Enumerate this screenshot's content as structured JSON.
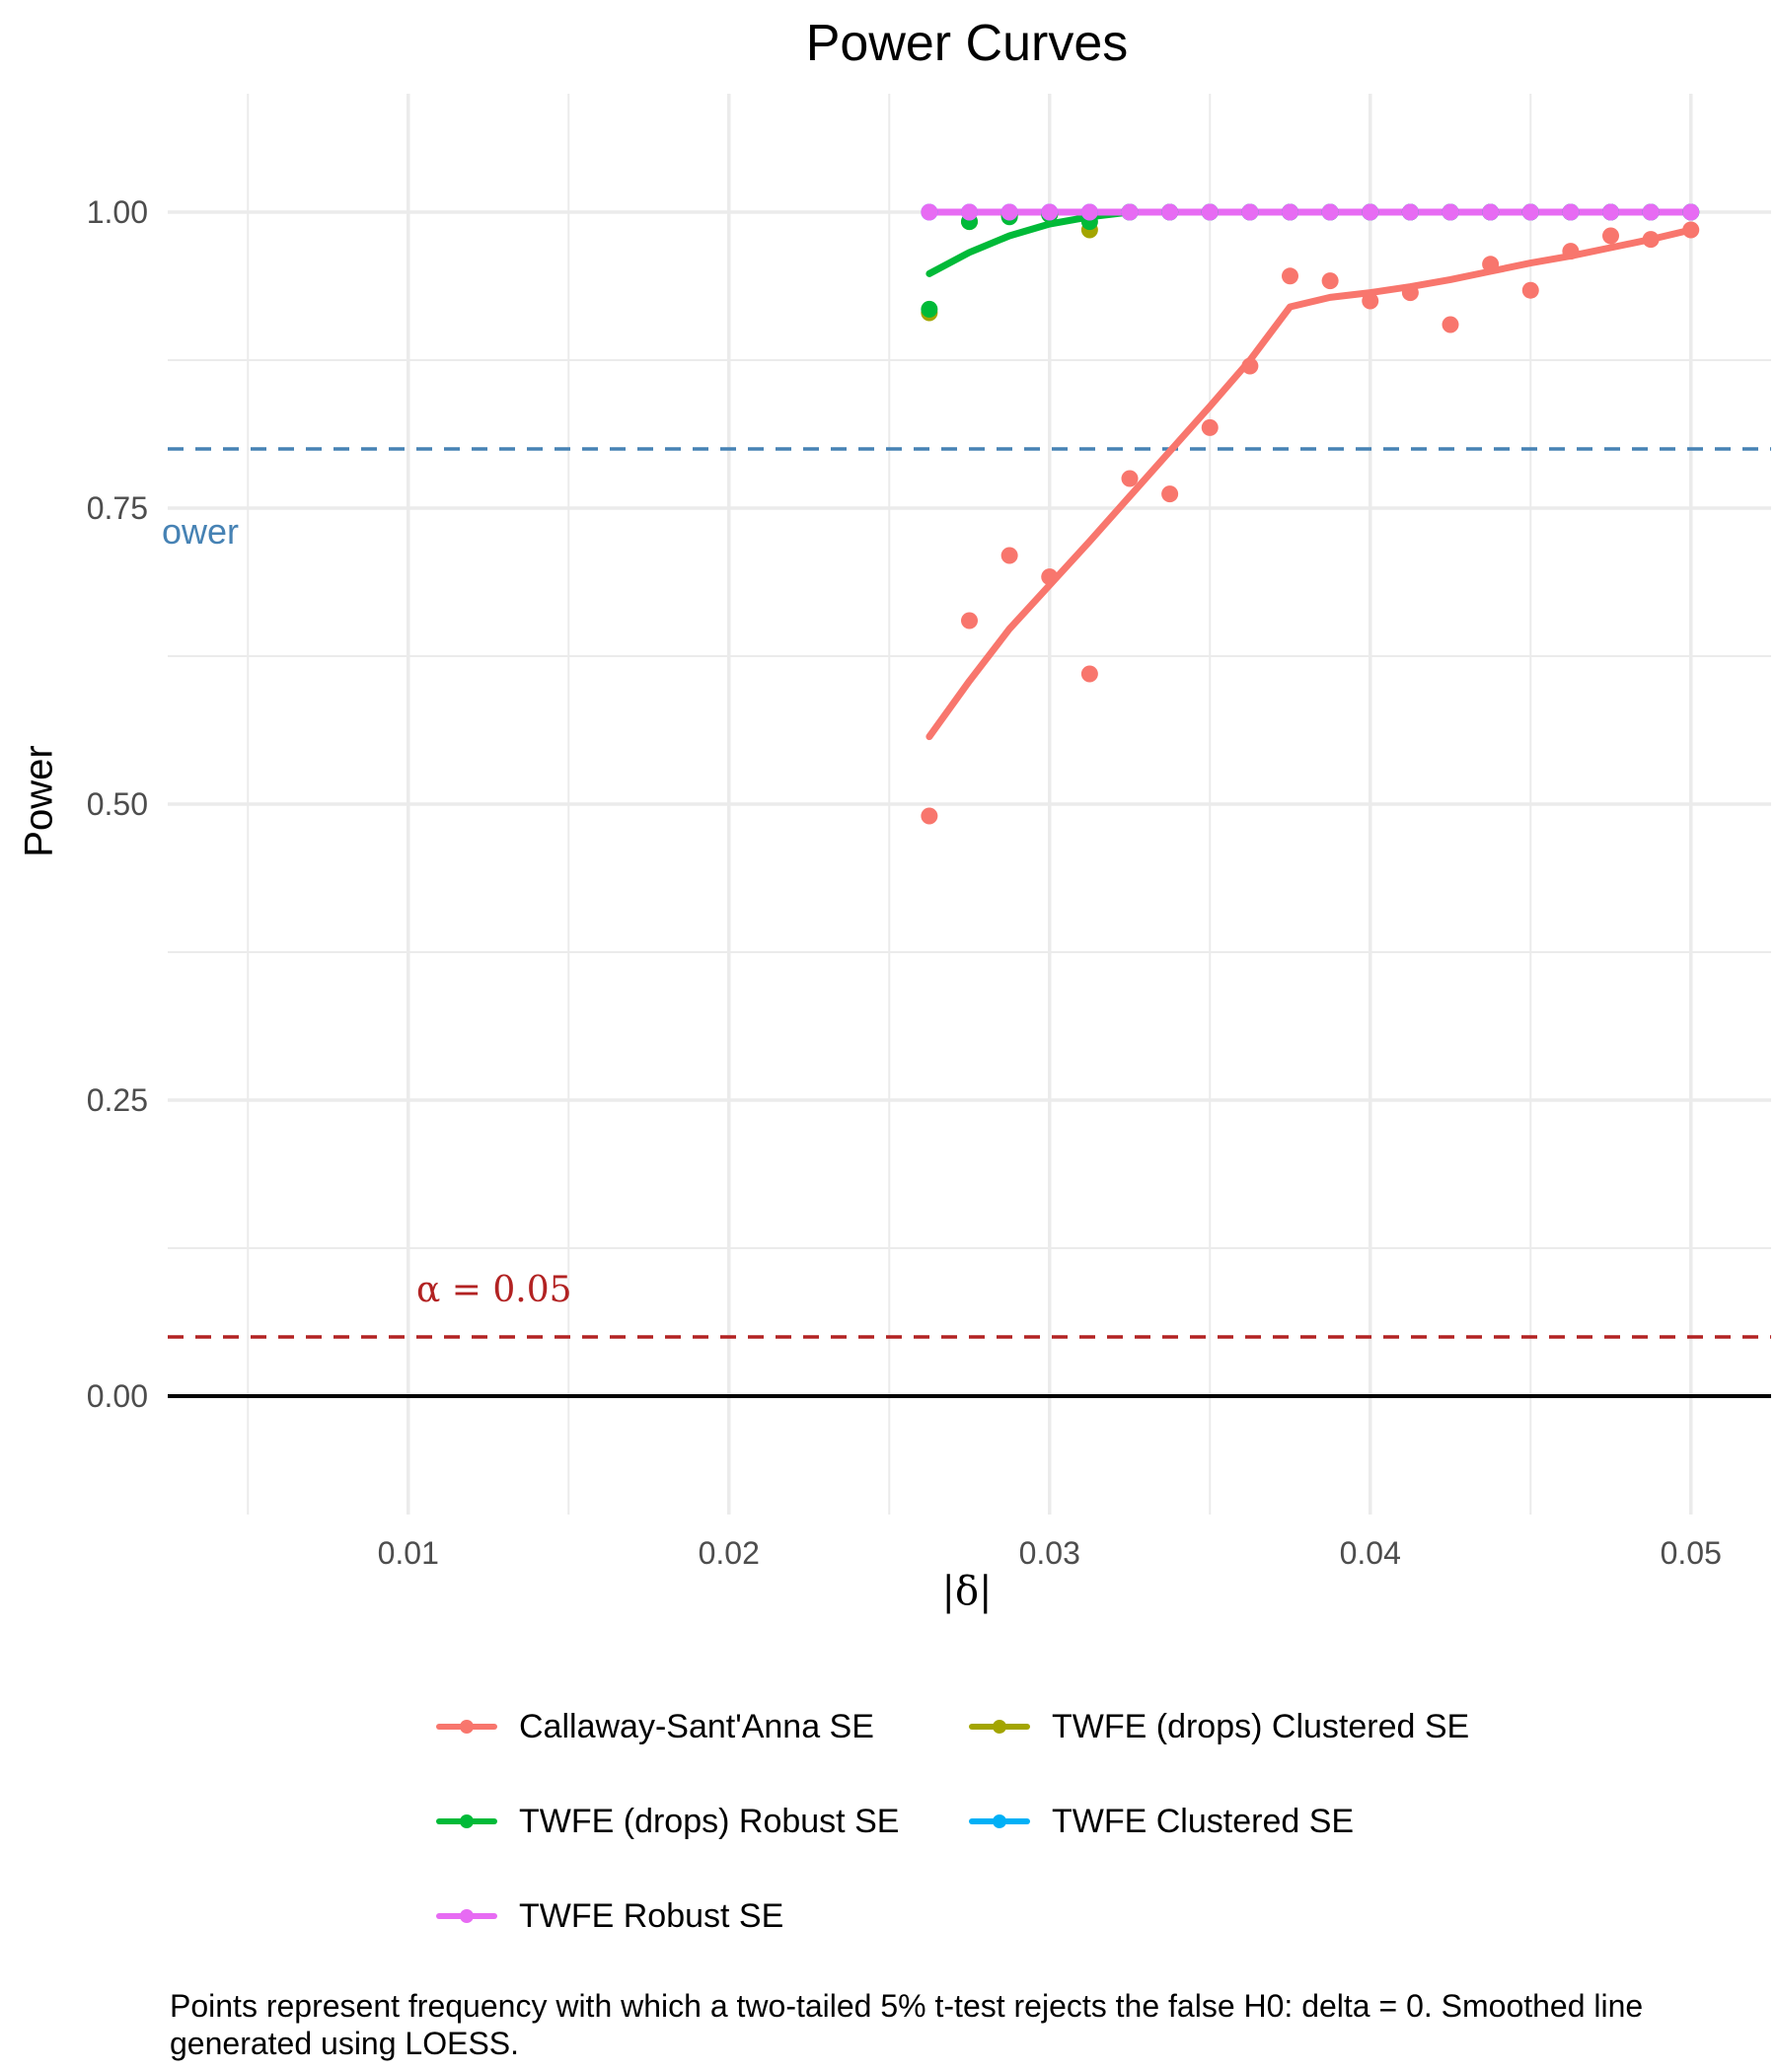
{
  "title": "Power Curves",
  "caption": "Points represent frequency with which a two-tailed 5% t-test rejects the false H0: delta = 0. Smoothed line generated using LOESS.",
  "annotations": {
    "power_label": "ower",
    "alpha_label": "α = 0.05"
  },
  "colors": {
    "cs": "#F8766D",
    "twfe_drops_robust": "#00BA38",
    "twfe_drops_clustered": "#A3A500",
    "twfe_clustered": "#00B0F6",
    "twfe_robust": "#E76BF3",
    "power_line": "#4682B4",
    "alpha_line": "#B22222",
    "grid": "#EBEBEB",
    "text": "#4D4D4D"
  },
  "chart_data": {
    "type": "scatter",
    "title": "Power Curves",
    "xlabel": "|δ|",
    "ylabel": "Power",
    "xlim": [
      0.0025,
      0.0525
    ],
    "ylim": [
      -0.1,
      1.1
    ],
    "x_ticks": [
      0.01,
      0.02,
      0.03,
      0.04,
      0.05
    ],
    "x_tick_labels": [
      "0.01",
      "0.02",
      "0.03",
      "0.04",
      "0.05"
    ],
    "y_ticks": [
      0,
      0.25,
      0.5,
      0.75,
      1.0
    ],
    "y_tick_labels": [
      "0.00",
      "0.25",
      "0.50",
      "0.75",
      "1.00"
    ],
    "grid": true,
    "legend_position": "bottom",
    "reference_lines": [
      {
        "y": 0.8,
        "style": "dashed",
        "color": "#4682B4"
      },
      {
        "y": 0.05,
        "style": "dashed",
        "color": "#B22222"
      },
      {
        "y": 0,
        "style": "solid",
        "color": "#000000"
      }
    ],
    "x": [
      0.02625,
      0.0275,
      0.02875,
      0.03,
      0.03125,
      0.0325,
      0.03375,
      0.035,
      0.03625,
      0.0375,
      0.03875,
      0.04,
      0.04125,
      0.0425,
      0.04375,
      0.045,
      0.04625,
      0.0475,
      0.04875,
      0.05
    ],
    "series": [
      {
        "name": "Callaway-Sant'Anna SE",
        "color": "#F8766D",
        "values": [
          0.49,
          0.655,
          0.71,
          0.692,
          0.61,
          0.775,
          0.762,
          0.818,
          0.87,
          0.946,
          0.942,
          0.925,
          0.932,
          0.905,
          0.956,
          0.934,
          0.967,
          0.98,
          0.977,
          0.985
        ],
        "smooth": [
          0.557,
          0.604,
          0.648,
          0.685,
          0.722,
          0.76,
          0.798,
          0.836,
          0.875,
          0.92,
          0.928,
          0.932,
          0.937,
          0.943,
          0.95,
          0.957,
          0.963,
          0.97,
          0.977,
          0.985
        ]
      },
      {
        "name": "TWFE (drops) Clustered SE",
        "color": "#A3A500",
        "values": [
          0.915,
          0.992,
          0.997,
          0.998,
          0.985,
          1.0,
          1.0,
          1.0,
          1.0,
          1.0,
          1.0,
          1.0,
          1.0,
          1.0,
          1.0,
          1.0,
          1.0,
          1.0,
          1.0,
          1.0
        ],
        "smooth": null
      },
      {
        "name": "TWFE (drops) Robust SE",
        "color": "#00BA38",
        "values": [
          0.918,
          0.992,
          0.996,
          0.998,
          0.992,
          1.0,
          1.0,
          1.0,
          1.0,
          1.0,
          1.0,
          1.0,
          1.0,
          1.0,
          1.0,
          1.0,
          1.0,
          1.0,
          1.0,
          1.0
        ],
        "smooth": [
          0.948,
          0.966,
          0.98,
          0.99,
          0.996,
          1.0,
          1.0,
          1.0,
          1.0,
          1.0,
          1.0,
          1.0,
          1.0,
          1.0,
          1.0,
          1.0,
          1.0,
          1.0,
          1.0,
          1.0
        ]
      },
      {
        "name": "TWFE Clustered SE",
        "color": "#00B0F6",
        "values": [
          1.0,
          1.0,
          1.0,
          1.0,
          1.0,
          1.0,
          1.0,
          1.0,
          1.0,
          1.0,
          1.0,
          1.0,
          1.0,
          1.0,
          1.0,
          1.0,
          1.0,
          1.0,
          1.0,
          1.0
        ],
        "smooth": [
          1.0,
          1.0,
          1.0,
          1.0,
          1.0,
          1.0,
          1.0,
          1.0,
          1.0,
          1.0,
          1.0,
          1.0,
          1.0,
          1.0,
          1.0,
          1.0,
          1.0,
          1.0,
          1.0,
          1.0
        ]
      },
      {
        "name": "TWFE Robust SE",
        "color": "#E76BF3",
        "values": [
          1.0,
          1.0,
          1.0,
          1.0,
          1.0,
          1.0,
          1.0,
          1.0,
          1.0,
          1.0,
          1.0,
          1.0,
          1.0,
          1.0,
          1.0,
          1.0,
          1.0,
          1.0,
          1.0,
          1.0
        ],
        "smooth": [
          1.0,
          1.0,
          1.0,
          1.0,
          1.0,
          1.0,
          1.0,
          1.0,
          1.0,
          1.0,
          1.0,
          1.0,
          1.0,
          1.0,
          1.0,
          1.0,
          1.0,
          1.0,
          1.0,
          1.0
        ]
      }
    ],
    "legend": [
      "Callaway-Sant'Anna SE",
      "TWFE (drops) Clustered SE",
      "TWFE (drops) Robust SE",
      "TWFE Clustered SE",
      "TWFE Robust SE"
    ]
  }
}
